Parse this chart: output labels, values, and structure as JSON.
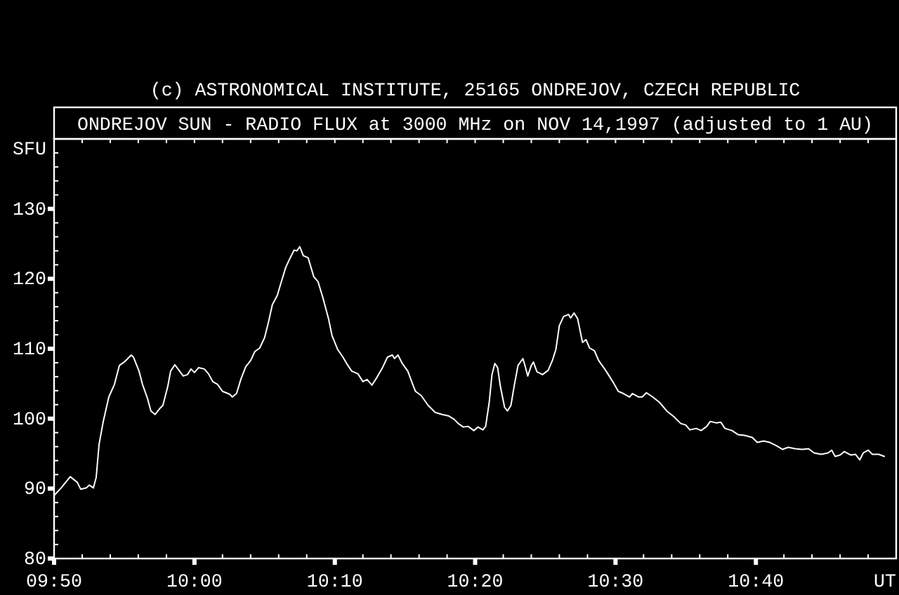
{
  "chart_data": {
    "type": "line",
    "title": "ONDREJOV SUN - RADIO FLUX at 3000 MHz on NOV 14,1997 (adjusted to 1 AU)",
    "annotations": [
      "(c) ASTRONOMICAL INSTITUTE, 25165 ONDREJOV, CZECH REPUBLIC"
    ],
    "xlabel": "UT",
    "ylabel": "SFU",
    "x": [
      9.8333,
      9.8417,
      9.8525,
      9.8608,
      9.865,
      9.8717,
      9.875,
      9.88,
      9.8833,
      9.8867,
      9.8917,
      9.8983,
      9.905,
      9.9108,
      9.9167,
      9.925,
      9.9275,
      9.9342,
      9.9383,
      9.9442,
      9.9483,
      9.9533,
      9.9592,
      9.9625,
      9.9683,
      9.9717,
      9.9767,
      9.9817,
      9.9867,
      9.9917,
      9.9958,
      10,
      10.005,
      10.0117,
      10.0167,
      10.0217,
      10.0275,
      10.0333,
      10.0417,
      10.045,
      10.05,
      10.055,
      10.0608,
      10.0667,
      10.0717,
      10.0775,
      10.0833,
      10.0875,
      10.0925,
      10.0983,
      10.1025,
      10.1083,
      10.1133,
      10.1183,
      10.1217,
      10.125,
      10.1292,
      10.135,
      10.1417,
      10.1467,
      10.1525,
      10.1592,
      10.1633,
      10.17,
      10.1758,
      10.1817,
      10.1867,
      10.1942,
      10.2,
      10.205,
      10.2108,
      10.2167,
      10.2233,
      10.2292,
      10.235,
      10.2375,
      10.2417,
      10.2467,
      10.2533,
      10.2592,
      10.2625,
      10.2692,
      10.2775,
      10.2858,
      10.2942,
      10.3017,
      10.3083,
      10.3133,
      10.3192,
      10.325,
      10.3317,
      10.3367,
      10.3425,
      10.3458,
      10.35,
      10.3533,
      10.3567,
      10.36,
      10.3633,
      10.3683,
      10.3717,
      10.3758,
      10.38,
      10.3842,
      10.39,
      10.3925,
      10.3958,
      10.4,
      10.4025,
      10.4067,
      10.4133,
      10.42,
      10.425,
      10.4292,
      10.4333,
      10.4383,
      10.4442,
      10.4467,
      10.4508,
      10.455,
      10.4608,
      10.465,
      10.4692,
      10.475,
      10.48,
      10.4883,
      10.4967,
      10.5033,
      10.5092,
      10.5167,
      10.52,
      10.5275,
      10.5317,
      10.5367,
      10.5442,
      10.5525,
      10.5608,
      10.5692,
      10.5775,
      10.5833,
      10.5883,
      10.5958,
      10.6017,
      10.6083,
      10.6125,
      10.6192,
      10.625,
      10.63,
      10.6383,
      10.6458,
      10.6533,
      10.6625,
      10.6683,
      10.6758,
      10.6833,
      10.6917,
      10.6983,
      10.705,
      10.7133,
      10.7217,
      10.7292,
      10.7358,
      10.7442,
      10.7525,
      10.7567,
      10.7608,
      10.7667,
      10.7717,
      10.7792,
      10.785,
      10.79,
      10.7942,
      10.8,
      10.805,
      10.8125,
      10.8192
    ],
    "series": [
      {
        "color": "#ffffff",
        "values": [
          89,
          90.1,
          91.7,
          90.9,
          89.9,
          90.1,
          90.5,
          90.1,
          91.6,
          96.3,
          99.6,
          103.1,
          104.9,
          107.6,
          108.1,
          109.1,
          108.8,
          106.8,
          104.9,
          102.9,
          101.1,
          100.6,
          101.5,
          101.9,
          104.6,
          106.8,
          107.7,
          106.9,
          106.1,
          106.3,
          107.1,
          106.6,
          107.3,
          107.1,
          106.4,
          105.3,
          104.9,
          103.9,
          103.5,
          103.1,
          103.6,
          105.6,
          107.4,
          108.3,
          109.6,
          110.1,
          111.6,
          113.6,
          116.3,
          117.6,
          119.3,
          121.6,
          122.9,
          124.1,
          124,
          124.6,
          123.3,
          123,
          120.3,
          119.6,
          117.3,
          114.3,
          111.9,
          109.9,
          108.9,
          107.7,
          106.8,
          106.4,
          105.3,
          105.6,
          104.8,
          105.9,
          107.3,
          108.8,
          109.1,
          108.6,
          109.1,
          107.9,
          106.8,
          104.9,
          103.9,
          103.3,
          101.9,
          100.9,
          100.6,
          100.4,
          99.9,
          99.3,
          98.8,
          98.9,
          98.3,
          98.8,
          98.4,
          98.9,
          102.3,
          106.3,
          107.9,
          107.3,
          104.6,
          101.6,
          101.1,
          101.9,
          104.9,
          107.6,
          108.6,
          107.6,
          106.1,
          107.6,
          108.1,
          106.7,
          106.3,
          106.9,
          108.3,
          109.9,
          113.3,
          114.6,
          114.9,
          114.4,
          115.1,
          114.3,
          110.9,
          111.3,
          110.1,
          109.7,
          108.3,
          106.9,
          105.3,
          103.9,
          103.6,
          103.1,
          103.6,
          103.1,
          103.1,
          103.7,
          103.1,
          102.3,
          101.1,
          100.3,
          99.3,
          99.1,
          98.4,
          98.6,
          98.3,
          98.9,
          99.6,
          99.4,
          99.5,
          98.6,
          98.3,
          97.7,
          97.6,
          97.3,
          96.6,
          96.8,
          96.6,
          96.1,
          95.6,
          95.9,
          95.7,
          95.6,
          95.7,
          95.1,
          94.9,
          95.1,
          95.5,
          94.6,
          94.8,
          95.3,
          94.8,
          94.9,
          94.1,
          95.1,
          95.5,
          94.9,
          94.9,
          94.6
        ]
      }
    ],
    "xlim": [
      9.8333,
      10.8333
    ],
    "ylim": [
      80,
      140
    ],
    "xticks": [
      {
        "value": 9.8333,
        "label": "09:50"
      },
      {
        "value": 9.8667,
        "label": null
      },
      {
        "value": 9.9,
        "label": null
      },
      {
        "value": 9.9333,
        "label": null
      },
      {
        "value": 9.9667,
        "label": null
      },
      {
        "value": 10,
        "label": "10:00"
      },
      {
        "value": 10.0333,
        "label": null
      },
      {
        "value": 10.0667,
        "label": null
      },
      {
        "value": 10.1,
        "label": null
      },
      {
        "value": 10.1333,
        "label": null
      },
      {
        "value": 10.1667,
        "label": "10:10"
      },
      {
        "value": 10.2,
        "label": null
      },
      {
        "value": 10.2333,
        "label": null
      },
      {
        "value": 10.2667,
        "label": null
      },
      {
        "value": 10.3,
        "label": null
      },
      {
        "value": 10.3333,
        "label": "10:20"
      },
      {
        "value": 10.3667,
        "label": null
      },
      {
        "value": 10.4,
        "label": null
      },
      {
        "value": 10.4333,
        "label": null
      },
      {
        "value": 10.4667,
        "label": null
      },
      {
        "value": 10.5,
        "label": "10:30"
      },
      {
        "value": 10.5333,
        "label": null
      },
      {
        "value": 10.5667,
        "label": null
      },
      {
        "value": 10.6,
        "label": null
      },
      {
        "value": 10.6333,
        "label": null
      },
      {
        "value": 10.6667,
        "label": "10:40"
      },
      {
        "value": 10.7,
        "label": null
      },
      {
        "value": 10.7333,
        "label": null
      },
      {
        "value": 10.7667,
        "label": null
      },
      {
        "value": 10.8,
        "label": null
      }
    ],
    "yticks": [
      80,
      {
        "value": 82,
        "label": null
      },
      {
        "value": 84,
        "label": null
      },
      {
        "value": 86,
        "label": null
      },
      {
        "value": 88,
        "label": null
      },
      90,
      {
        "value": 92,
        "label": null
      },
      {
        "value": 94,
        "label": null
      },
      {
        "value": 96,
        "label": null
      },
      {
        "value": 98,
        "label": null
      },
      100,
      {
        "value": 102,
        "label": null
      },
      {
        "value": 104,
        "label": null
      },
      {
        "value": 106,
        "label": null
      },
      {
        "value": 108,
        "label": null
      },
      110,
      {
        "value": 112,
        "label": null
      },
      {
        "value": 114,
        "label": null
      },
      {
        "value": 116,
        "label": null
      },
      {
        "value": 118,
        "label": null
      },
      120,
      {
        "value": 122,
        "label": null
      },
      {
        "value": 124,
        "label": null
      },
      {
        "value": 126,
        "label": null
      },
      {
        "value": 128,
        "label": null
      },
      130,
      {
        "value": 132,
        "label": null
      },
      {
        "value": 134,
        "label": null
      },
      {
        "value": 136,
        "label": null
      },
      {
        "value": 138,
        "label": null
      }
    ]
  }
}
